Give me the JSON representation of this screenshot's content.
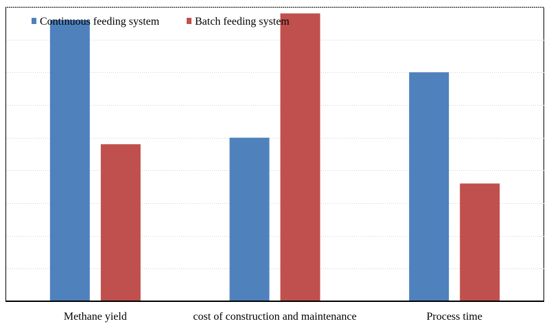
{
  "chart_data": {
    "type": "bar",
    "title": "",
    "xlabel": "",
    "ylabel": "",
    "categories": [
      "Methane yield",
      "cost of construction and maintenance",
      "Process time"
    ],
    "series": [
      {
        "name": "Continuous feeding system",
        "color": "#4f81bd",
        "values": [
          8.6,
          5.0,
          7.0
        ]
      },
      {
        "name": "Batch feeding system",
        "color": "#c0504d",
        "values": [
          4.8,
          8.8,
          3.6
        ]
      }
    ],
    "ylim": [
      0,
      9
    ],
    "y_axis_ticks_labeled": false,
    "grid": true,
    "grid_style": "dotted horizontal",
    "legend_position": "top-left"
  }
}
